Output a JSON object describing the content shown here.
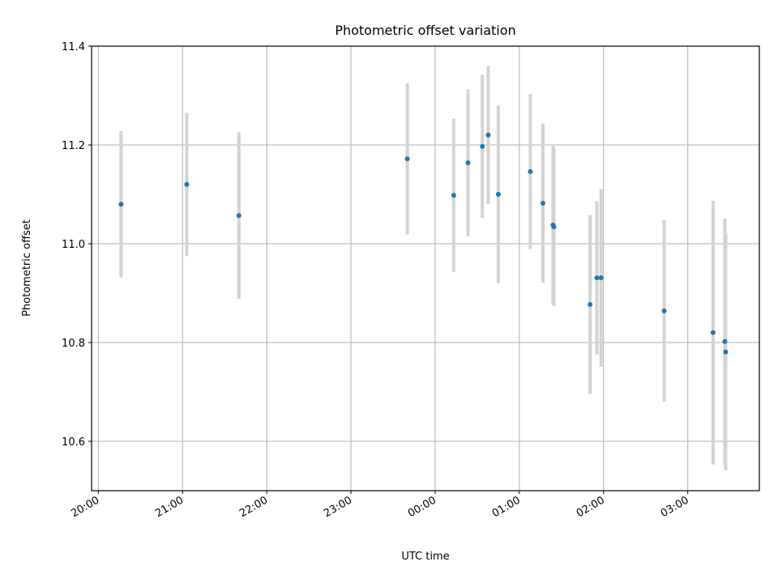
{
  "chart_data": {
    "type": "scatter",
    "title": "Photometric offset variation",
    "xlabel": "UTC time",
    "ylabel": "Photometric offset",
    "x_unit": "hours after 20:00 UTC",
    "xlim": [
      -0.08,
      7.85
    ],
    "ylim": [
      10.5,
      11.4
    ],
    "grid": true,
    "x_ticks": [
      {
        "t": 0,
        "label": "20:00"
      },
      {
        "t": 1,
        "label": "21:00"
      },
      {
        "t": 2,
        "label": "22:00"
      },
      {
        "t": 3,
        "label": "23:00"
      },
      {
        "t": 4,
        "label": "00:00"
      },
      {
        "t": 5,
        "label": "01:00"
      },
      {
        "t": 6,
        "label": "02:00"
      },
      {
        "t": 7,
        "label": "03:00"
      }
    ],
    "y_ticks": [
      10.6,
      10.8,
      11.0,
      11.2,
      11.4
    ],
    "colors": {
      "marker": "#1f77b4",
      "errorbar": "#d3d3d3",
      "grid": "#b0b0b0"
    },
    "points": [
      {
        "t": 0.27,
        "y": 11.08,
        "err": 0.148
      },
      {
        "t": 1.05,
        "y": 11.12,
        "err": 0.145
      },
      {
        "t": 1.67,
        "y": 11.057,
        "err": 0.169
      },
      {
        "t": 3.67,
        "y": 11.172,
        "err": 0.153
      },
      {
        "t": 4.22,
        "y": 11.098,
        "err": 0.155
      },
      {
        "t": 4.39,
        "y": 11.164,
        "err": 0.149
      },
      {
        "t": 4.56,
        "y": 11.197,
        "err": 0.145
      },
      {
        "t": 4.63,
        "y": 11.22,
        "err": 0.14
      },
      {
        "t": 4.75,
        "y": 11.1,
        "err": 0.18
      },
      {
        "t": 5.13,
        "y": 11.146,
        "err": 0.157
      },
      {
        "t": 5.28,
        "y": 11.082,
        "err": 0.161
      },
      {
        "t": 5.4,
        "y": 11.038,
        "err": 0.16
      },
      {
        "t": 5.41,
        "y": 11.034,
        "err": 0.16
      },
      {
        "t": 5.84,
        "y": 10.877,
        "err": 0.181
      },
      {
        "t": 5.92,
        "y": 10.931,
        "err": 0.155
      },
      {
        "t": 5.97,
        "y": 10.931,
        "err": 0.18
      },
      {
        "t": 6.72,
        "y": 10.864,
        "err": 0.184
      },
      {
        "t": 7.3,
        "y": 10.82,
        "err": 0.267
      },
      {
        "t": 7.44,
        "y": 10.802,
        "err": 0.249
      },
      {
        "t": 7.45,
        "y": 10.781,
        "err": 0.24
      }
    ]
  }
}
